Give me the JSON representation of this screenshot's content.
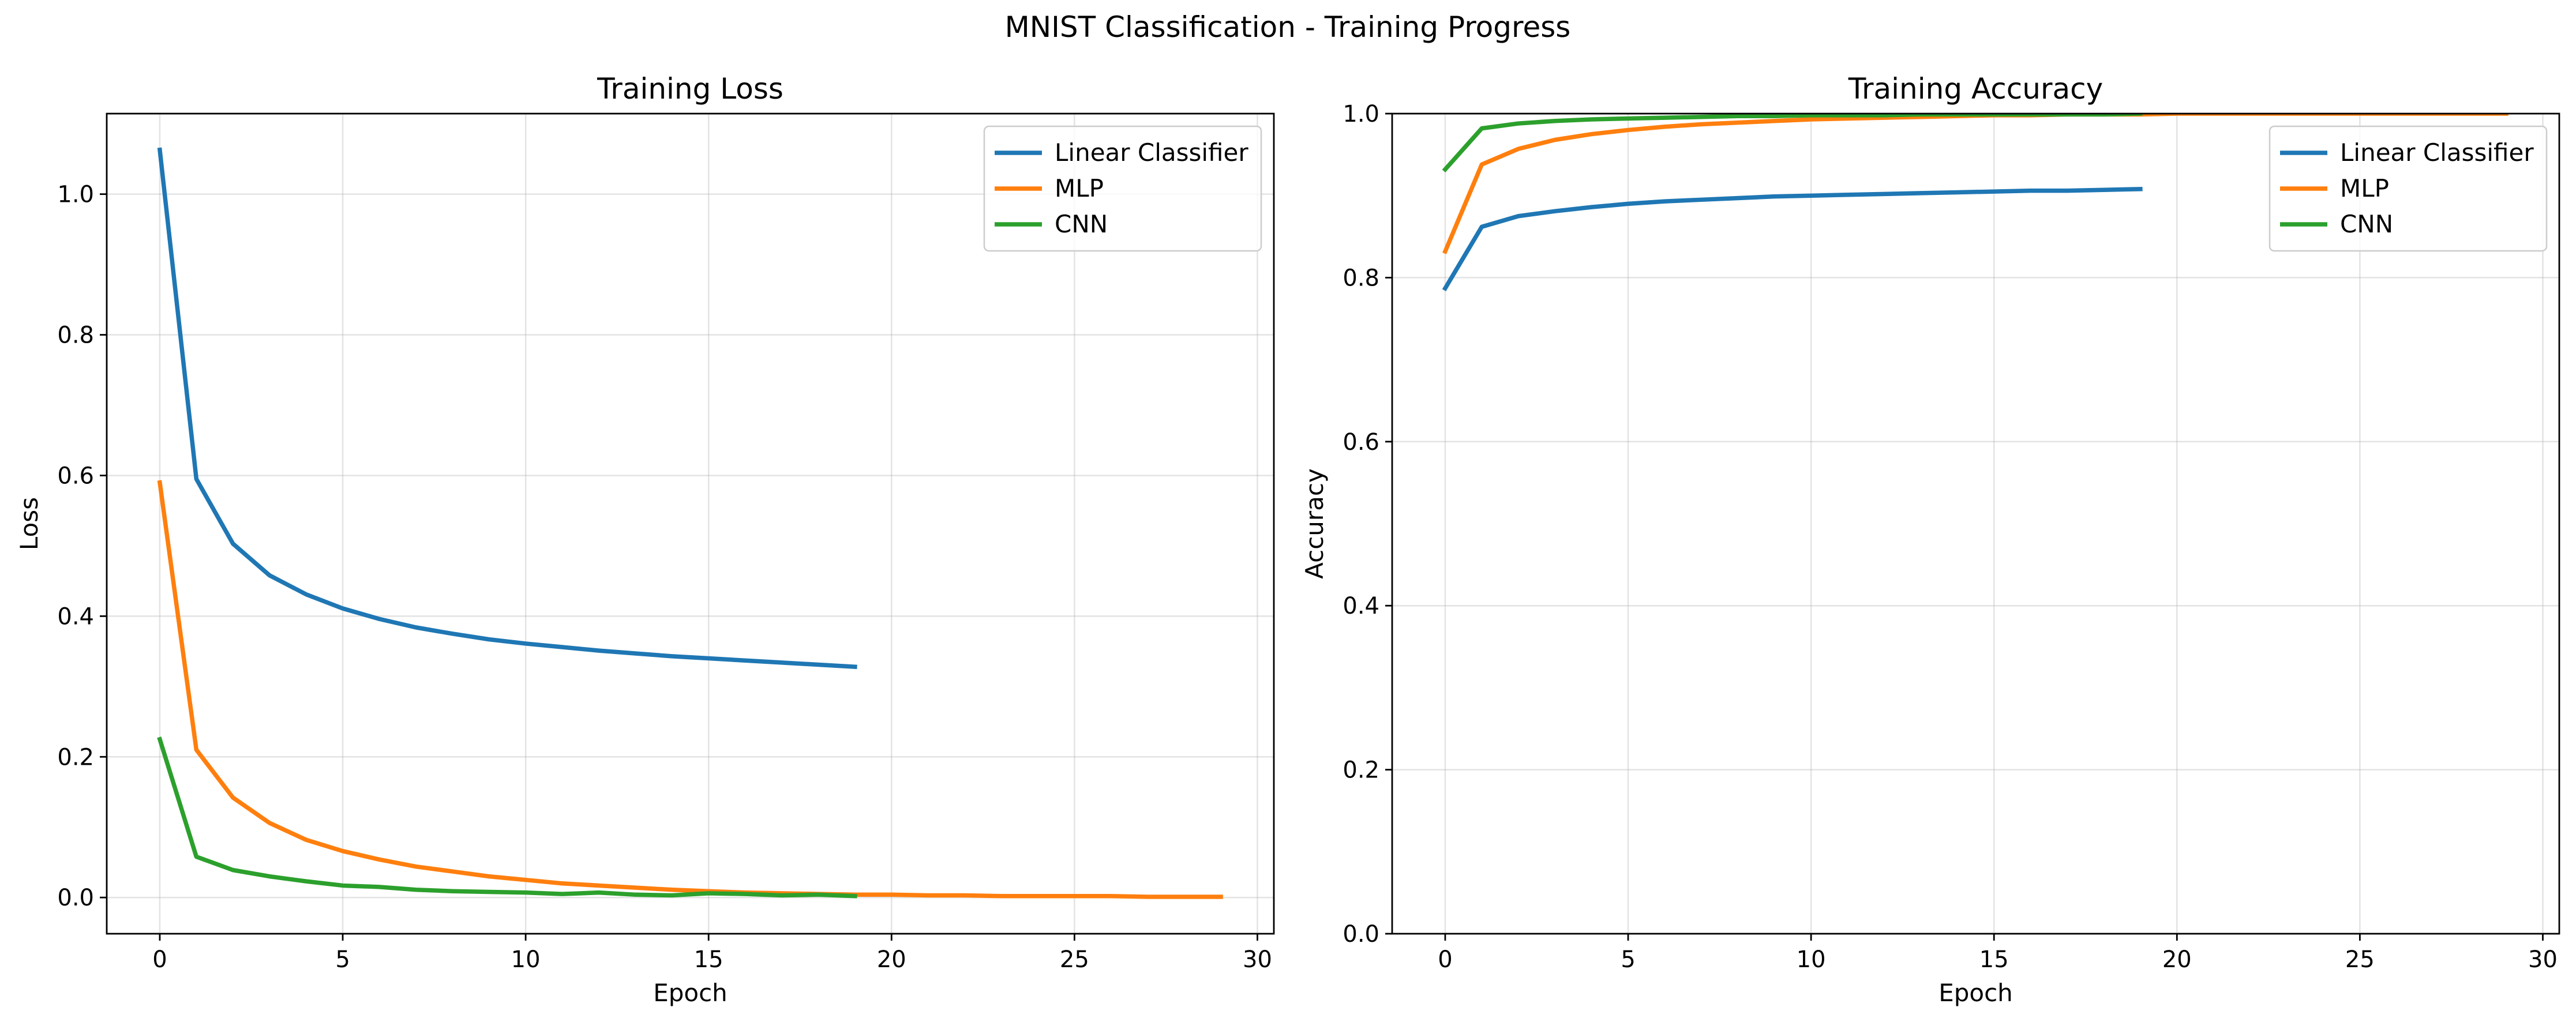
{
  "figure_title": "MNIST Classification - Training Progress",
  "colors": {
    "Linear Classifier": "#1f77b4",
    "MLP": "#ff7f0e",
    "CNN": "#2ca02c"
  },
  "chart_data": [
    {
      "type": "line",
      "title": "Training Loss",
      "xlabel": "Epoch",
      "ylabel": "Loss",
      "xlim": [
        -1.45,
        30.45
      ],
      "ylim": [
        -0.0515,
        1.1145
      ],
      "xticks": [
        0,
        5,
        10,
        15,
        20,
        25,
        30
      ],
      "yticks": [
        0.0,
        0.2,
        0.4,
        0.6,
        0.8,
        1.0
      ],
      "ytick_labels": [
        "0.0",
        "0.2",
        "0.4",
        "0.6",
        "0.8",
        "1.0"
      ],
      "grid": true,
      "legend": "top-right",
      "series": [
        {
          "name": "Linear Classifier",
          "x": [
            0,
            1,
            2,
            3,
            4,
            5,
            6,
            7,
            8,
            9,
            10,
            11,
            12,
            13,
            14,
            15,
            16,
            17,
            18,
            19
          ],
          "values": [
            1.063,
            0.595,
            0.503,
            0.458,
            0.431,
            0.411,
            0.396,
            0.384,
            0.375,
            0.367,
            0.361,
            0.356,
            0.351,
            0.347,
            0.343,
            0.34,
            0.337,
            0.334,
            0.331,
            0.328
          ]
        },
        {
          "name": "MLP",
          "x": [
            0,
            1,
            2,
            3,
            4,
            5,
            6,
            7,
            8,
            9,
            10,
            11,
            12,
            13,
            14,
            15,
            16,
            17,
            18,
            19,
            20,
            21,
            22,
            23,
            24,
            25,
            26,
            27,
            28,
            29
          ],
          "values": [
            0.59,
            0.21,
            0.142,
            0.106,
            0.082,
            0.066,
            0.054,
            0.044,
            0.037,
            0.03,
            0.025,
            0.02,
            0.017,
            0.014,
            0.011,
            0.009,
            0.007,
            0.006,
            0.005,
            0.004,
            0.004,
            0.003,
            0.003,
            0.002,
            0.002,
            0.002,
            0.002,
            0.001,
            0.001,
            0.001
          ]
        },
        {
          "name": "CNN",
          "x": [
            0,
            1,
            2,
            3,
            4,
            5,
            6,
            7,
            8,
            9,
            10,
            11,
            12,
            13,
            14,
            15,
            16,
            17,
            18,
            19
          ],
          "values": [
            0.225,
            0.058,
            0.039,
            0.03,
            0.023,
            0.017,
            0.015,
            0.011,
            0.009,
            0.008,
            0.007,
            0.005,
            0.007,
            0.004,
            0.003,
            0.006,
            0.005,
            0.003,
            0.004,
            0.002
          ]
        }
      ]
    },
    {
      "type": "line",
      "title": "Training Accuracy",
      "xlabel": "Epoch",
      "ylabel": "Accuracy",
      "xlim": [
        -1.45,
        30.45
      ],
      "ylim": [
        0.0,
        1.0
      ],
      "xticks": [
        0,
        5,
        10,
        15,
        20,
        25,
        30
      ],
      "yticks": [
        0.0,
        0.2,
        0.4,
        0.6,
        0.8,
        1.0
      ],
      "ytick_labels": [
        "0.0",
        "0.2",
        "0.4",
        "0.6",
        "0.8",
        "1.0"
      ],
      "grid": true,
      "legend": "top-right",
      "series": [
        {
          "name": "Linear Classifier",
          "x": [
            0,
            1,
            2,
            3,
            4,
            5,
            6,
            7,
            8,
            9,
            10,
            11,
            12,
            13,
            14,
            15,
            16,
            17,
            18,
            19
          ],
          "values": [
            0.787,
            0.862,
            0.875,
            0.881,
            0.886,
            0.89,
            0.893,
            0.895,
            0.897,
            0.899,
            0.9,
            0.901,
            0.902,
            0.903,
            0.904,
            0.905,
            0.906,
            0.906,
            0.907,
            0.908
          ]
        },
        {
          "name": "MLP",
          "x": [
            0,
            1,
            2,
            3,
            4,
            5,
            6,
            7,
            8,
            9,
            10,
            11,
            12,
            13,
            14,
            15,
            16,
            17,
            18,
            19,
            20,
            21,
            22,
            23,
            24,
            25,
            26,
            27,
            28,
            29
          ],
          "values": [
            0.832,
            0.938,
            0.957,
            0.968,
            0.975,
            0.98,
            0.984,
            0.987,
            0.989,
            0.991,
            0.993,
            0.994,
            0.995,
            0.996,
            0.997,
            0.998,
            0.998,
            0.999,
            0.999,
            0.999,
            1.0,
            1.0,
            1.0,
            1.0,
            1.0,
            1.0,
            1.0,
            1.0,
            1.0,
            1.0
          ]
        },
        {
          "name": "CNN",
          "x": [
            0,
            1,
            2,
            3,
            4,
            5,
            6,
            7,
            8,
            9,
            10,
            11,
            12,
            13,
            14,
            15,
            16,
            17,
            18,
            19
          ],
          "values": [
            0.932,
            0.982,
            0.988,
            0.991,
            0.993,
            0.994,
            0.995,
            0.996,
            0.997,
            0.997,
            0.998,
            0.998,
            0.998,
            0.999,
            0.999,
            0.999,
            0.999,
            0.999,
            0.999,
            1.0
          ]
        }
      ]
    }
  ]
}
